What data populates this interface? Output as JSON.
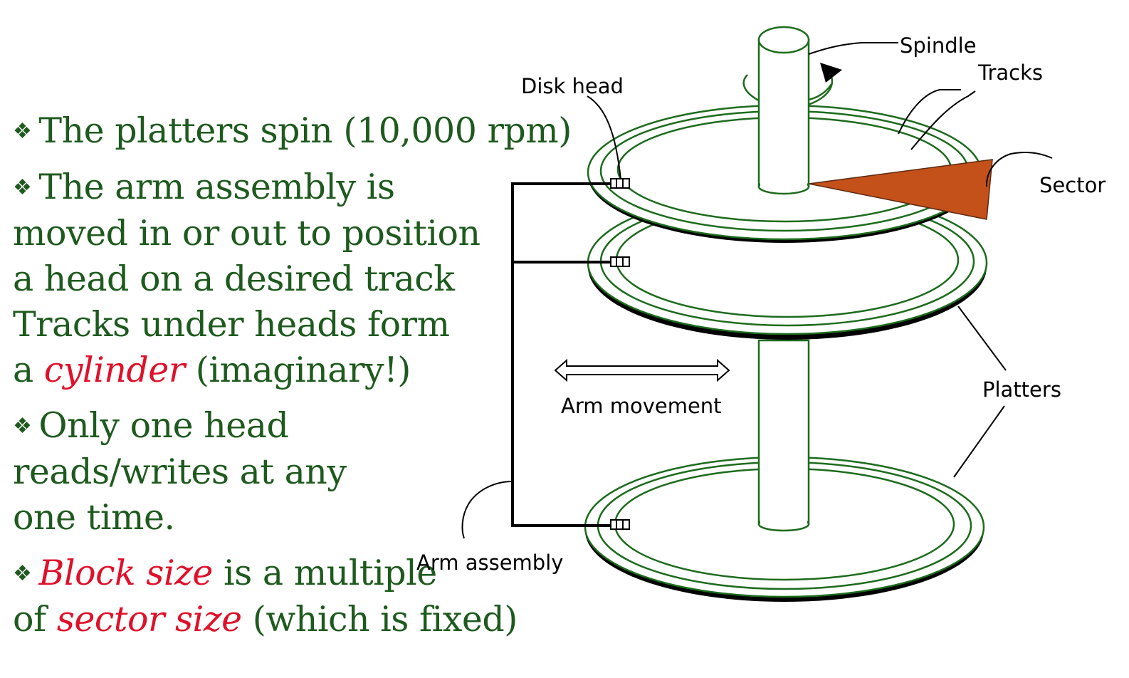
{
  "bullets": [
    {
      "lines": [
        {
          "parts": [
            {
              "text": "The platters spin (10,000 rpm)",
              "em": false
            }
          ]
        }
      ]
    },
    {
      "lines": [
        {
          "parts": [
            {
              "text": "The arm assembly is",
              "em": false
            }
          ]
        },
        {
          "parts": [
            {
              "text": "moved in or out to position",
              "em": false
            }
          ]
        },
        {
          "parts": [
            {
              "text": "a head on a desired track",
              "em": false
            }
          ]
        },
        {
          "parts": [
            {
              "text": "Tracks under heads form",
              "em": false
            }
          ]
        },
        {
          "parts": [
            {
              "text": "a ",
              "em": false
            },
            {
              "text": "cylinder",
              "em": true
            },
            {
              "text": " (imaginary!)",
              "em": false
            }
          ]
        }
      ]
    },
    {
      "lines": [
        {
          "parts": [
            {
              "text": "Only one head",
              "em": false
            }
          ]
        },
        {
          "parts": [
            {
              "text": "reads/writes at any",
              "em": false
            }
          ]
        },
        {
          "parts": [
            {
              "text": "one time.",
              "em": false
            }
          ]
        }
      ]
    },
    {
      "lines": [
        {
          "parts": [
            {
              "text": "Block size",
              "em": true
            },
            {
              "text": " is a multiple",
              "em": false
            }
          ]
        },
        {
          "parts": [
            {
              "text": "of ",
              "em": false
            },
            {
              "text": "sector size",
              "em": true
            },
            {
              "text": " (which is fixed)",
              "em": false
            }
          ]
        }
      ]
    }
  ],
  "bullet_icon": "diamond-bullet-icon",
  "diagram": {
    "labels": {
      "spindle": "Spindle",
      "tracks": "Tracks",
      "disk_head": "Disk head",
      "sector": "Sector",
      "platters": "Platters",
      "arm_movement": "Arm movement",
      "arm_assembly": "Arm assembly"
    }
  },
  "colors": {
    "text": "#1e5a1e",
    "emphasis": "#e0102a",
    "diagram_stroke": "#1d6b1d",
    "sector_fill": "#c4501a"
  }
}
